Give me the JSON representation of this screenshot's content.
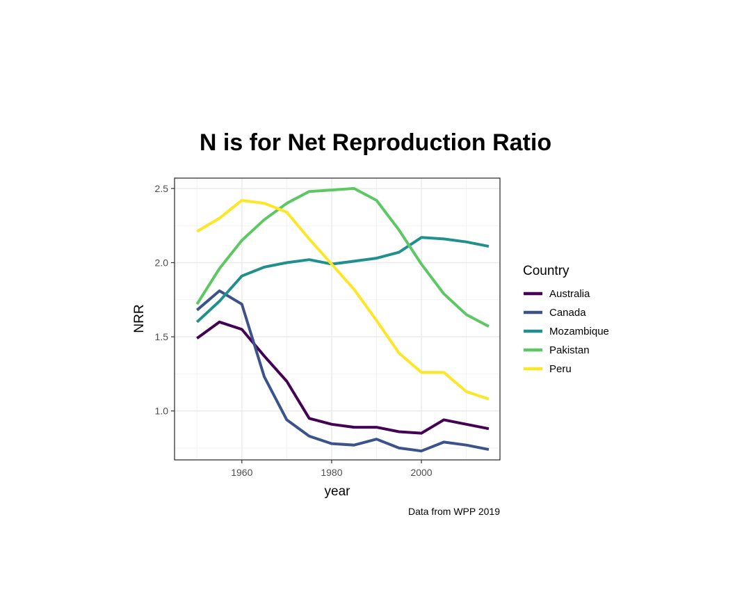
{
  "chart_data": {
    "type": "line",
    "title": "N is for Net Reproduction Ratio",
    "xlabel": "year",
    "ylabel": "NRR",
    "caption": "Data from WPP 2019",
    "xlim": [
      1945,
      2017.5
    ],
    "ylim": [
      0.67,
      2.57
    ],
    "xticks": [
      1960,
      1980,
      2000
    ],
    "xtick_labels": [
      "1960",
      "1980",
      "2000"
    ],
    "yticks": [
      1.0,
      1.5,
      2.0,
      2.5
    ],
    "ytick_labels": [
      "1.0",
      "1.5",
      "2.0",
      "2.5"
    ],
    "grid": true,
    "legend": {
      "title": "Country",
      "position": "right"
    },
    "x": [
      1950,
      1955,
      1960,
      1965,
      1970,
      1975,
      1980,
      1985,
      1990,
      1995,
      2000,
      2005,
      2010,
      2015
    ],
    "series": [
      {
        "name": "Australia",
        "color": "#440154",
        "values": [
          1.49,
          1.6,
          1.55,
          1.37,
          1.2,
          0.95,
          0.91,
          0.89,
          0.89,
          0.86,
          0.85,
          0.94,
          0.91,
          0.88
        ]
      },
      {
        "name": "Canada",
        "color": "#3b528b",
        "values": [
          1.68,
          1.81,
          1.72,
          1.23,
          0.94,
          0.83,
          0.78,
          0.77,
          0.81,
          0.75,
          0.73,
          0.79,
          0.77,
          0.74
        ]
      },
      {
        "name": "Mozambique",
        "color": "#21908c",
        "values": [
          1.6,
          1.74,
          1.91,
          1.97,
          2.0,
          2.02,
          1.99,
          2.01,
          2.03,
          2.07,
          2.17,
          2.16,
          2.14,
          2.11
        ]
      },
      {
        "name": "Pakistan",
        "color": "#5dc863",
        "values": [
          1.72,
          1.96,
          2.15,
          2.29,
          2.4,
          2.48,
          2.49,
          2.5,
          2.42,
          2.22,
          1.99,
          1.79,
          1.65,
          1.57
        ]
      },
      {
        "name": "Peru",
        "color": "#fde725",
        "values": [
          2.21,
          2.3,
          2.42,
          2.4,
          2.34,
          2.16,
          1.99,
          1.82,
          1.61,
          1.39,
          1.26,
          1.26,
          1.13,
          1.08
        ]
      }
    ]
  }
}
